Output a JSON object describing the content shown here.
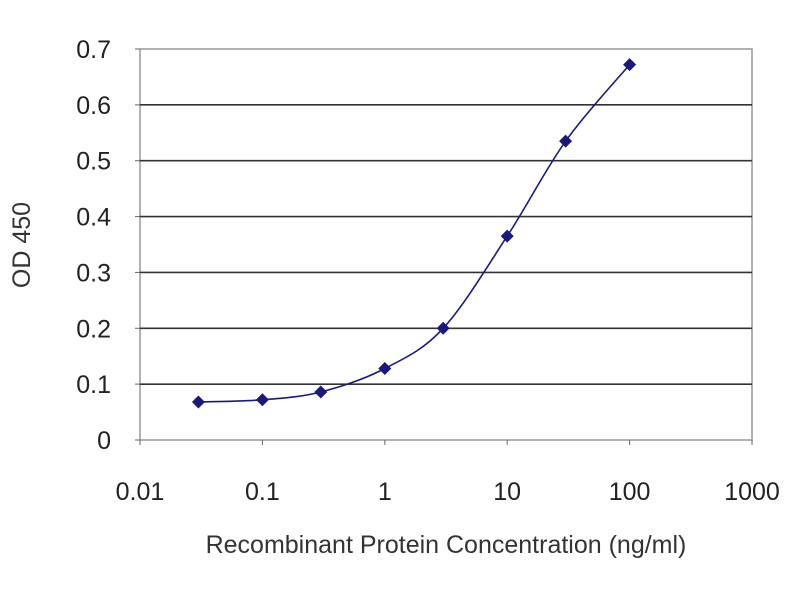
{
  "chart_data": {
    "type": "scatter",
    "title": "",
    "xlabel": "Recombinant Protein Concentration (ng/ml)",
    "ylabel": "OD 450",
    "x_scale": "log",
    "xlim": [
      0.01,
      1000
    ],
    "ylim": [
      0,
      0.7
    ],
    "x_ticks": [
      "0.01",
      "0.1",
      "1",
      "10",
      "100",
      "1000"
    ],
    "y_ticks": [
      "0",
      "0.1",
      "0.2",
      "0.3",
      "0.4",
      "0.5",
      "0.6",
      "0.7"
    ],
    "grid": "horizontal",
    "legend": "none",
    "series": [
      {
        "x": [
          0.03,
          0.1,
          0.3,
          1,
          3,
          10,
          30,
          100
        ],
        "y": [
          0.068,
          0.072,
          0.086,
          0.128,
          0.2,
          0.365,
          0.535,
          0.672
        ],
        "style": "diamond markers with smoothed line"
      }
    ],
    "colors": {
      "series": "#1a1a7e",
      "grid": "#333333",
      "plot_border": "#999999"
    }
  }
}
